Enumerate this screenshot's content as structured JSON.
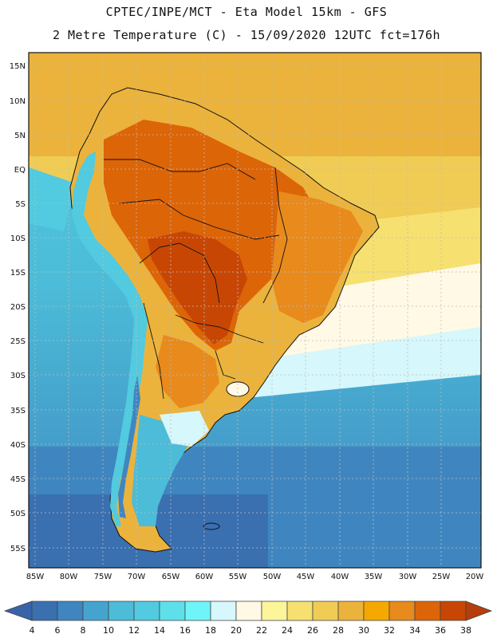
{
  "title": {
    "line1": "CPTEC/INPE/MCT -  Eta Model 15km - GFS",
    "line2": "2 Metre Temperature (C) - 15/09/2020 12UTC fct=176h"
  },
  "map": {
    "lat_labels": [
      "15N",
      "10N",
      "5N",
      "EQ",
      "5S",
      "10S",
      "15S",
      "20S",
      "25S",
      "30S",
      "35S",
      "40S",
      "45S",
      "50S",
      "55S"
    ],
    "lon_labels": [
      "85W",
      "80W",
      "75W",
      "70W",
      "65W",
      "60W",
      "55W",
      "50W",
      "45W",
      "40W",
      "35W",
      "30W",
      "25W",
      "20W"
    ]
  },
  "colorbar": {
    "labels": [
      "4",
      "6",
      "8",
      "10",
      "12",
      "14",
      "16",
      "18",
      "20",
      "22",
      "24",
      "26",
      "28",
      "30",
      "32",
      "34",
      "36",
      "38"
    ],
    "colors": [
      "#3a6fb0",
      "#3f86c0",
      "#45a4cf",
      "#4cbcd8",
      "#52cadf",
      "#5ee0ea",
      "#6ff5f7",
      "#d6f7fb",
      "#fff9e6",
      "#fdf59a",
      "#f6e070",
      "#f0cc55",
      "#ebb33c",
      "#f5a800",
      "#e88a1c",
      "#dc6508",
      "#c84604"
    ],
    "under_color": "#3a62a8",
    "over_color": "#b53e0c"
  }
}
